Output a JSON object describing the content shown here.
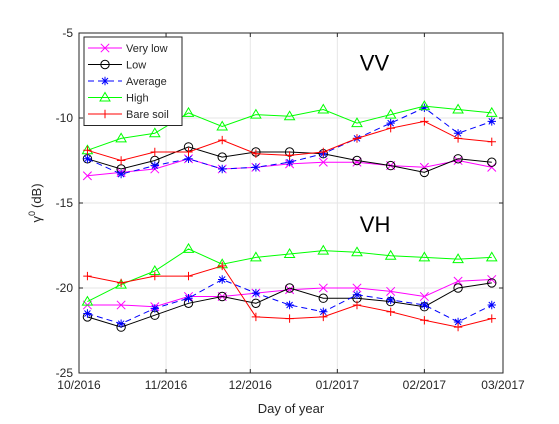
{
  "chart_data": {
    "type": "line",
    "xlabel": "Day of year",
    "ylabel": "γ⁰ (dB)",
    "ylabel_parts": {
      "symbol": "γ",
      "superscript": "0",
      "unit": "(dB)"
    },
    "xlim": [
      "2016-10-01",
      "2017-03-01"
    ],
    "ylim": [
      -25,
      -5
    ],
    "yticks": [
      -25,
      -20,
      -15,
      -10,
      -5
    ],
    "xticks": [
      {
        "date": "2016-10-01",
        "label": "10/2016"
      },
      {
        "date": "2016-11-01",
        "label": "11/2016"
      },
      {
        "date": "2016-12-01",
        "label": "12/2016"
      },
      {
        "date": "2017-01-01",
        "label": "01/2017"
      },
      {
        "date": "2017-02-01",
        "label": "02/2017"
      },
      {
        "date": "2017-03-01",
        "label": "03/2017"
      }
    ],
    "grid": true,
    "legend_position": "top-left",
    "annotations": [
      {
        "text": "VV",
        "x": "2017-01-09",
        "y": -7.2
      },
      {
        "text": "VH",
        "x": "2017-01-09",
        "y": -16.7
      }
    ],
    "x": [
      "2016-10-04",
      "2016-10-16",
      "2016-10-28",
      "2016-11-09",
      "2016-11-21",
      "2016-12-03",
      "2016-12-15",
      "2016-12-27",
      "2017-01-08",
      "2017-01-20",
      "2017-02-01",
      "2017-02-13",
      "2017-02-25"
    ],
    "series": [
      {
        "name": "Very low",
        "color": "#ff00ff",
        "marker": "x",
        "dash": "solid",
        "values": [
          -13.4,
          -13.2,
          -13.0,
          -12.4,
          -13.0,
          -12.9,
          -12.7,
          -12.6,
          -12.6,
          -12.8,
          -12.9,
          -12.5,
          -12.9
        ]
      },
      {
        "name": "Low",
        "color": "#000000",
        "marker": "o",
        "dash": "solid",
        "values": [
          -12.4,
          -13.0,
          -12.5,
          -11.7,
          -12.3,
          -12.0,
          -12.0,
          -12.1,
          -12.5,
          -12.8,
          -13.2,
          -12.4,
          -12.6
        ]
      },
      {
        "name": "Average",
        "color": "#0000ff",
        "marker": "*",
        "dash": "dashed",
        "values": [
          -12.4,
          -13.3,
          -12.8,
          -12.4,
          -13.0,
          -12.9,
          -12.6,
          -12.1,
          -11.2,
          -10.3,
          -9.4,
          -10.9,
          -10.2
        ]
      },
      {
        "name": "High",
        "color": "#00ff00",
        "marker": "triangle",
        "dash": "solid",
        "values": [
          -11.9,
          -11.2,
          -10.9,
          -9.7,
          -10.5,
          -9.8,
          -9.9,
          -9.5,
          -10.3,
          -9.8,
          -9.3,
          -9.5,
          -9.7
        ]
      },
      {
        "name": "Bare soil",
        "color": "#ff0000",
        "marker": "+",
        "dash": "solid",
        "values": [
          -11.9,
          -12.5,
          -12.0,
          -12.0,
          -11.3,
          -12.1,
          -12.2,
          -12.0,
          -11.2,
          -10.6,
          -10.2,
          -11.2,
          -11.4
        ]
      },
      {
        "name": "Very low",
        "color": "#ff00ff",
        "marker": "x",
        "dash": "solid",
        "values": [
          -21.0,
          -21.0,
          -21.1,
          -20.5,
          -20.5,
          -20.3,
          -20.1,
          -20.0,
          -20.0,
          -20.2,
          -20.5,
          -19.6,
          -19.5
        ]
      },
      {
        "name": "Low",
        "color": "#000000",
        "marker": "o",
        "dash": "solid",
        "values": [
          -21.7,
          -22.3,
          -21.6,
          -20.9,
          -20.5,
          -20.9,
          -20.0,
          -20.6,
          -20.6,
          -20.8,
          -21.1,
          -20.0,
          -19.7
        ]
      },
      {
        "name": "Average",
        "color": "#0000ff",
        "marker": "*",
        "dash": "dashed",
        "values": [
          -21.5,
          -22.1,
          -21.2,
          -20.6,
          -19.5,
          -20.3,
          -21.0,
          -21.4,
          -20.4,
          -20.7,
          -21.0,
          -22.0,
          -21.0
        ]
      },
      {
        "name": "High",
        "color": "#00ff00",
        "marker": "triangle",
        "dash": "solid",
        "values": [
          -20.8,
          -19.8,
          -19.0,
          -17.7,
          -18.6,
          -18.2,
          -18.0,
          -17.8,
          -17.9,
          -18.1,
          -18.2,
          -18.3,
          -18.2
        ]
      },
      {
        "name": "Bare soil",
        "color": "#ff0000",
        "marker": "+",
        "dash": "solid",
        "values": [
          -19.3,
          -19.7,
          -19.3,
          -19.3,
          -18.7,
          -21.7,
          -21.8,
          -21.7,
          -21.0,
          -21.4,
          -21.9,
          -22.3,
          -21.8
        ]
      }
    ]
  }
}
